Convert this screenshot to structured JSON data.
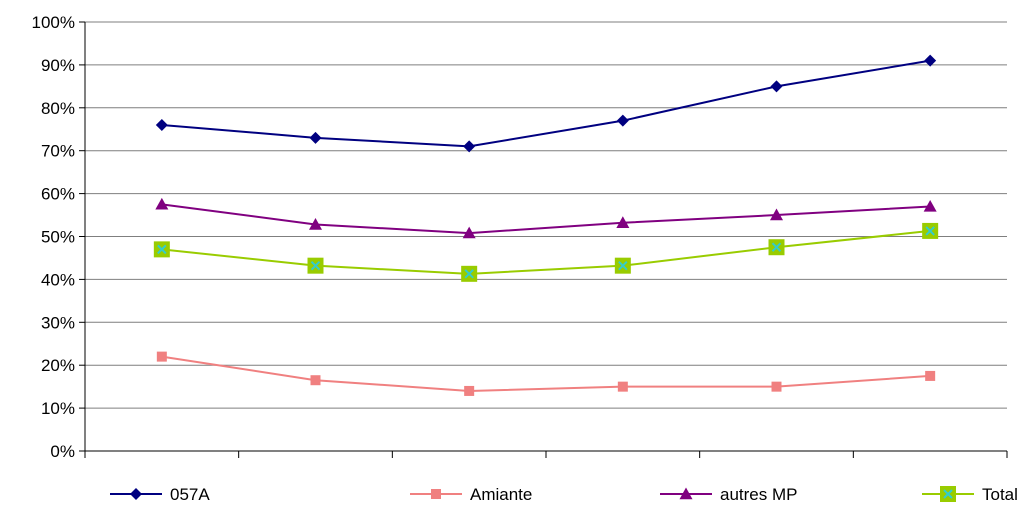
{
  "chart_data": {
    "type": "line",
    "categories": [
      "",
      "",
      "",
      "",
      "",
      ""
    ],
    "ylim": [
      0,
      1
    ],
    "yticks": [
      "0%",
      "10%",
      "20%",
      "30%",
      "40%",
      "50%",
      "60%",
      "70%",
      "80%",
      "90%",
      "100%"
    ],
    "grid": true,
    "legend_position": "bottom",
    "series": [
      {
        "name": "057A",
        "color": "#000080",
        "marker": "diamond",
        "values": [
          0.76,
          0.73,
          0.71,
          0.77,
          0.85,
          0.91
        ]
      },
      {
        "name": "Amiante",
        "color": "#f08080",
        "marker": "square",
        "values": [
          0.22,
          0.165,
          0.14,
          0.15,
          0.15,
          0.175
        ]
      },
      {
        "name": "autres MP",
        "color": "#800080",
        "marker": "triangle",
        "values": [
          0.575,
          0.528,
          0.508,
          0.532,
          0.55,
          0.57
        ]
      },
      {
        "name": "Total",
        "color": "#99cc00",
        "marker": "square-x",
        "marker_x_color": "#33cccc",
        "values": [
          0.47,
          0.432,
          0.413,
          0.432,
          0.475,
          0.513
        ]
      }
    ]
  }
}
